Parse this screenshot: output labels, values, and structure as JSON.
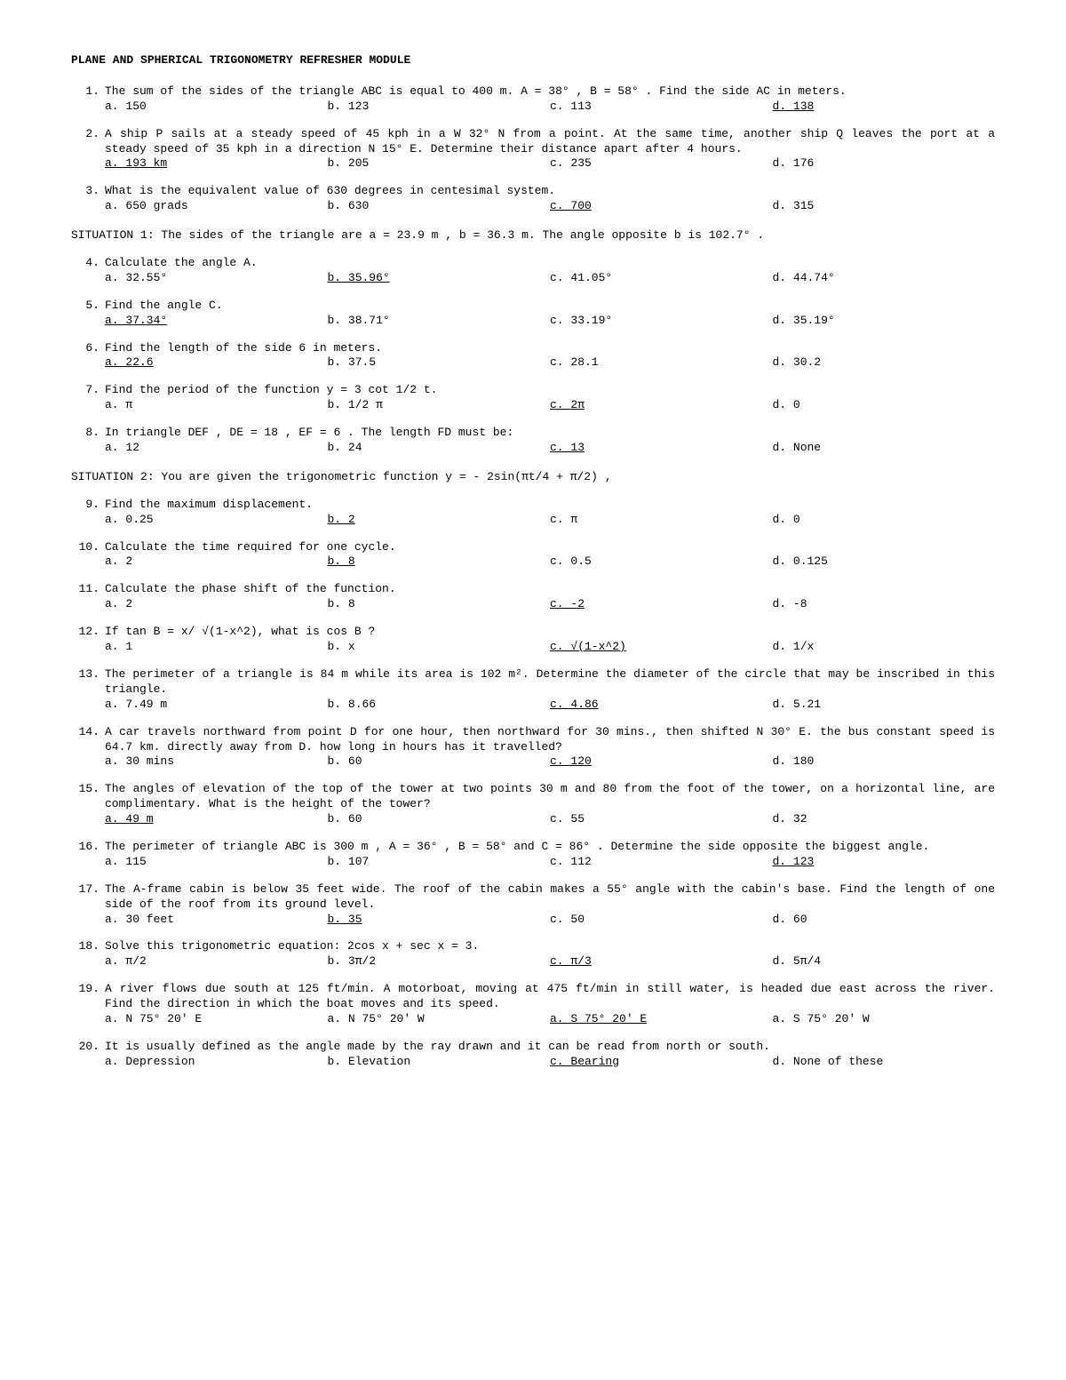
{
  "title": "PLANE AND SPHERICAL TRIGONOMETRY REFRESHER MODULE",
  "situations": {
    "s1": "SITUATION 1: The sides of the triangle are a = 23.9 m , b = 36.3 m. The angle opposite b is 102.7° .",
    "s2": "SITUATION 2: You are given the trigonometric function y = - 2sin(πt/4 + π/2) ,"
  },
  "questions": [
    {
      "n": "1.",
      "t": "The sum of the sides of the triangle ABC is equal to 400 m. A = 38° , B = 58° . Find the side AC in meters.",
      "o": [
        {
          "l": "a. 150",
          "u": false
        },
        {
          "l": "b. 123",
          "u": false
        },
        {
          "l": "c. 113",
          "u": false
        },
        {
          "l": "d. 138",
          "u": true
        }
      ]
    },
    {
      "n": "2.",
      "t": "A ship P sails at a steady speed of 45 kph in a W 32° N from a point. At the same time, another ship Q leaves the port at a steady speed of 35 kph in a direction N 15° E. Determine their distance apart after 4 hours.",
      "o": [
        {
          "l": "a. 193 km",
          "u": true
        },
        {
          "l": "b. 205",
          "u": false
        },
        {
          "l": "c. 235",
          "u": false
        },
        {
          "l": "d. 176",
          "u": false
        }
      ]
    },
    {
      "n": "3.",
      "t": "What is the equivalent value of 630 degrees in centesimal system.",
      "o": [
        {
          "l": "a. 650 grads",
          "u": false
        },
        {
          "l": "b. 630",
          "u": false
        },
        {
          "l": "c. 700",
          "u": true
        },
        {
          "l": "d. 315",
          "u": false
        }
      ]
    },
    {
      "n": "4.",
      "t": "Calculate the angle A.",
      "o": [
        {
          "l": "a. 32.55°",
          "u": false
        },
        {
          "l": "b. 35.96°",
          "u": true
        },
        {
          "l": "c. 41.05°",
          "u": false
        },
        {
          "l": "d. 44.74°",
          "u": false
        }
      ]
    },
    {
      "n": "5.",
      "t": "Find the angle C.",
      "o": [
        {
          "l": "a. 37.34°",
          "u": true
        },
        {
          "l": "b. 38.71°",
          "u": false
        },
        {
          "l": "c. 33.19°",
          "u": false
        },
        {
          "l": "d. 35.19°",
          "u": false
        }
      ]
    },
    {
      "n": "6.",
      "t": "Find the length of the side 6 in meters.",
      "o": [
        {
          "l": "a. 22.6",
          "u": true
        },
        {
          "l": "b. 37.5",
          "u": false
        },
        {
          "l": "c. 28.1",
          "u": false
        },
        {
          "l": "d. 30.2",
          "u": false
        }
      ]
    },
    {
      "n": "7.",
      "t": "Find the period of the function y = 3 cot 1/2 t.",
      "o": [
        {
          "l": "a. π",
          "u": false
        },
        {
          "l": "b. 1/2 π",
          "u": false
        },
        {
          "l": "c. 2π",
          "u": true
        },
        {
          "l": "d. 0",
          "u": false
        }
      ]
    },
    {
      "n": "8.",
      "t": "In triangle DEF , DE = 18 , EF = 6 . The length FD must be:",
      "o": [
        {
          "l": "a. 12",
          "u": false
        },
        {
          "l": "b. 24",
          "u": false
        },
        {
          "l": "c. 13",
          "u": true
        },
        {
          "l": "d. None",
          "u": false
        }
      ]
    },
    {
      "n": "9.",
      "t": "Find the maximum displacement.",
      "o": [
        {
          "l": "a. 0.25",
          "u": false
        },
        {
          "l": "b. 2",
          "u": true
        },
        {
          "l": "c. π",
          "u": false
        },
        {
          "l": "d. 0",
          "u": false
        }
      ]
    },
    {
      "n": "10.",
      "t": "Calculate the time required for one cycle.",
      "o": [
        {
          "l": "a. 2",
          "u": false
        },
        {
          "l": "b. 8",
          "u": true
        },
        {
          "l": "c. 0.5",
          "u": false
        },
        {
          "l": "d. 0.125",
          "u": false
        }
      ]
    },
    {
      "n": "11.",
      "t": "Calculate the phase shift of the function.",
      "o": [
        {
          "l": "a. 2",
          "u": false
        },
        {
          "l": "b. 8",
          "u": false
        },
        {
          "l": "c. -2",
          "u": true
        },
        {
          "l": "d. -8",
          "u": false
        }
      ]
    },
    {
      "n": "12.",
      "t": "If tan B = x/ √(1-x^2), what is cos B ?",
      "o": [
        {
          "l": "a. 1",
          "u": false
        },
        {
          "l": "b. x",
          "u": false
        },
        {
          "l": "c. √(1-x^2)",
          "u": true
        },
        {
          "l": "d. 1/x",
          "u": false
        }
      ]
    },
    {
      "n": "13.",
      "t": "The perimeter of a triangle is 84 m while its area is 102 m². Determine the diameter of the circle that may be inscribed in this triangle.",
      "o": [
        {
          "l": "a. 7.49 m",
          "u": false
        },
        {
          "l": "b. 8.66",
          "u": false
        },
        {
          "l": "c. 4.86",
          "u": true
        },
        {
          "l": "d. 5.21",
          "u": false
        }
      ]
    },
    {
      "n": "14.",
      "t": "A car travels northward from point D for one hour, then northward for 30 mins., then shifted N 30° E. the bus constant speed is 64.7 km. directly away from D. how long in hours has it travelled?",
      "o": [
        {
          "l": "a. 30 mins",
          "u": false
        },
        {
          "l": "b. 60",
          "u": false
        },
        {
          "l": "c. 120 ",
          "u": true
        },
        {
          "l": "d. 180",
          "u": false
        }
      ]
    },
    {
      "n": "15.",
      "t": "The angles of elevation of the top of the tower at two points 30 m and 80 from the foot of the tower, on a horizontal line, are complimentary. What is the height of the tower?",
      "o": [
        {
          "l": "a. 49 m",
          "u": true
        },
        {
          "l": "b. 60",
          "u": false
        },
        {
          "l": "c. 55",
          "u": false
        },
        {
          "l": "d. 32",
          "u": false
        }
      ]
    },
    {
      "n": "16.",
      "t": "The perimeter of triangle ABC is 300 m , A = 36° , B = 58° and C = 86° . Determine the side opposite the biggest angle.",
      "o": [
        {
          "l": "a. 115",
          "u": false
        },
        {
          "l": "b. 107",
          "u": false
        },
        {
          "l": "c. 112",
          "u": false
        },
        {
          "l": "d. 123",
          "u": true
        }
      ]
    },
    {
      "n": "17.",
      "t": "The A-frame cabin is below 35 feet wide. The roof of the cabin makes a 55° angle with the cabin's base. Find the length of one side of the roof from its ground level.",
      "o": [
        {
          "l": "a. 30 feet",
          "u": false
        },
        {
          "l": "b. 35  ",
          "u": true
        },
        {
          "l": "c. 50",
          "u": false
        },
        {
          "l": "d. 60",
          "u": false
        }
      ]
    },
    {
      "n": "18.",
      "t": "Solve this trigonometric equation: 2cos x + sec x = 3.",
      "o": [
        {
          "l": "a. π/2",
          "u": false
        },
        {
          "l": "b. 3π/2",
          "u": false
        },
        {
          "l": "c. π/3 ",
          "u": true
        },
        {
          "l": "d. 5π/4",
          "u": false
        }
      ]
    },
    {
      "n": "19.",
      "t": "A river flows due south at 125 ft/min. A motorboat, moving at 475 ft/min in still water, is headed due east across the river. Find the direction in which the boat moves and its speed.",
      "o": [
        {
          "l": "a. N 75° 20' E",
          "u": false
        },
        {
          "l": "a. N 75° 20' W",
          "u": false
        },
        {
          "l": "a. S 75° 20' E",
          "u": true
        },
        {
          "l": "a. S 75° 20' W",
          "u": false
        }
      ]
    },
    {
      "n": "20.",
      "t": "It is usually defined as the angle made by the ray drawn and it can be read from north or south.",
      "o": [
        {
          "l": "a. Depression",
          "u": false
        },
        {
          "l": "b. Elevation",
          "u": false
        },
        {
          "l": "c. Bearing",
          "u": true
        },
        {
          "l": "d. None of these",
          "u": false
        }
      ]
    }
  ]
}
